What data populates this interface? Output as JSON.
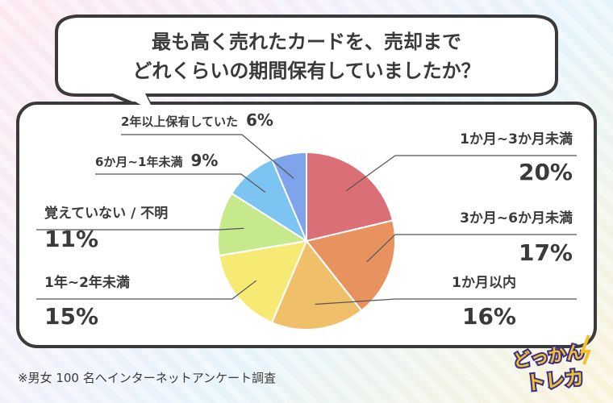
{
  "question": {
    "line1": "最も高く売れたカードを、売却まで",
    "line2": "どれくらいの期間保有していましたか？"
  },
  "chart_data": {
    "type": "pie",
    "title": "最も高く売れたカードを、売却までどれくらいの期間保有していましたか？",
    "slices": [
      {
        "label": "1か月~3か月未満",
        "value": 20,
        "color": "#db6f78"
      },
      {
        "label": "3か月~6か月未満",
        "value": 17,
        "color": "#e8935f"
      },
      {
        "label": "1か月以内",
        "value": 16,
        "color": "#f0bf6a"
      },
      {
        "label": "1年~2年未満",
        "value": 15,
        "color": "#f7ea74"
      },
      {
        "label": "覚えていない / 不明",
        "value": 11,
        "color": "#c6e98c"
      },
      {
        "label": "6か月~1年未満",
        "value": 9,
        "color": "#7cc4f1"
      },
      {
        "label": "2年以上保有していた",
        "value": 6,
        "color": "#7fa3ec"
      }
    ],
    "unit": "%",
    "start": "12 o'clock",
    "direction": "clockwise"
  },
  "note": "※男女 100 名へインターネットアンケート調査",
  "logo": {
    "line1": "どっかん",
    "line2": "トレカ"
  },
  "colors": {
    "border": "#3a3a3a",
    "card": "#ffffff",
    "text": "#3a3a3a"
  }
}
